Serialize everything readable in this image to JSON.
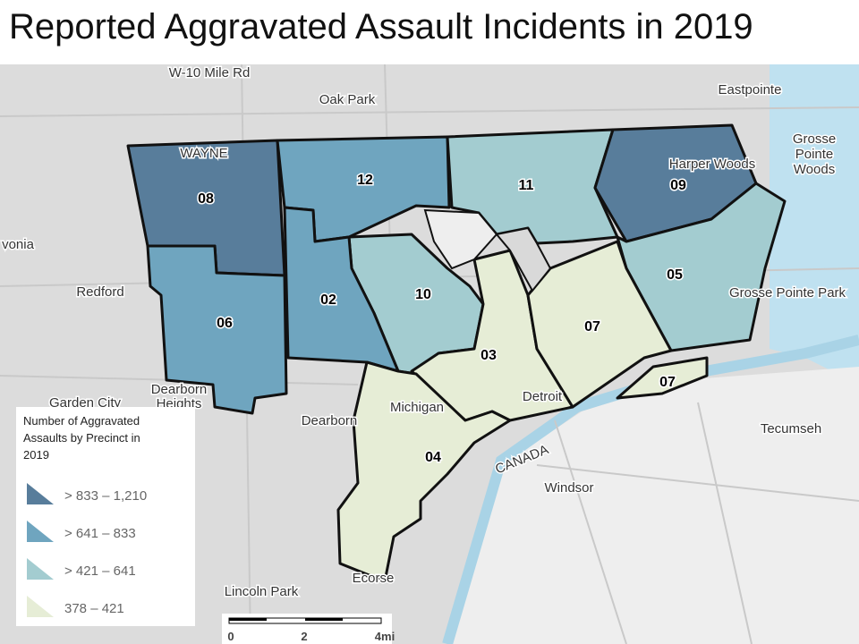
{
  "title": "Reported Aggravated Assault Incidents in 2019",
  "precincts": [
    {
      "label": "08"
    },
    {
      "label": "12"
    },
    {
      "label": "11"
    },
    {
      "label": "09"
    },
    {
      "label": "05"
    },
    {
      "label": "10"
    },
    {
      "label": "02"
    },
    {
      "label": "06"
    },
    {
      "label": "03"
    },
    {
      "label": "07"
    },
    {
      "label": "07"
    },
    {
      "label": "04"
    }
  ],
  "places": [
    "Oak Park",
    "Eastpointe",
    "Redford",
    "Dearborn",
    "Windsor",
    "Tecumseh",
    "Lincoln Park",
    "Ecorse",
    "Grosse Pointe Park",
    "Garden City",
    "Harper Woods",
    "Detroit",
    "Michigan",
    "CANADA",
    "W-10 Mile Rd",
    "Grosse",
    "Pointe",
    "Woods",
    "Dearborn",
    "Heights",
    "vonia",
    "WAYNE"
  ],
  "legend": {
    "title_lines": [
      "Number of Aggravated",
      "Assaults by Precinct in",
      "2019"
    ],
    "entries": [
      "> 833 – 1,210",
      "> 641 – 833",
      "> 421 – 641",
      "378 – 421"
    ]
  },
  "scale": [
    "0",
    "2",
    "4mi"
  ]
}
